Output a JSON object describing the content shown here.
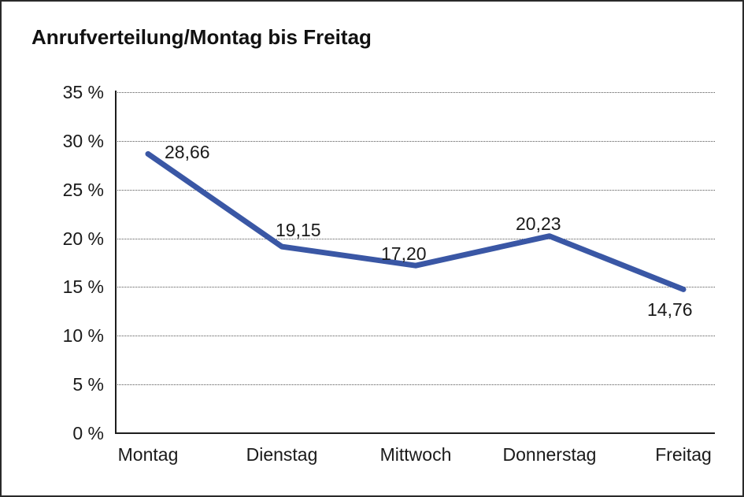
{
  "window": {
    "background": "#ffffff",
    "border_color": "#2a2a2a",
    "text_color": "#1a1a1a"
  },
  "chart_data": {
    "type": "line",
    "title": "Anrufverteilung/Montag bis Freitag",
    "categories": [
      "Montag",
      "Dienstag",
      "Mittwoch",
      "Donnerstag",
      "Freitag"
    ],
    "series": [
      {
        "name": "Anrufverteilung",
        "values": [
          28.66,
          19.15,
          17.2,
          20.23,
          14.76
        ]
      }
    ],
    "point_labels": [
      "28,66",
      "19,15",
      "17,20",
      "20,23",
      "14,76"
    ],
    "xlabel": "",
    "ylabel": "",
    "ylim": [
      0,
      35
    ],
    "y_tick_values": [
      0,
      5,
      10,
      15,
      20,
      25,
      30,
      35
    ],
    "y_tick_labels": [
      "0 %",
      "5 %",
      "10 %",
      "15 %",
      "20 %",
      "25 %",
      "30 %",
      "35 %"
    ],
    "grid": "horizontal-dotted",
    "legend": "none",
    "line_color": "#3A57A5",
    "axis_color": "#1d1d1d",
    "gridline_color": "#555555"
  }
}
